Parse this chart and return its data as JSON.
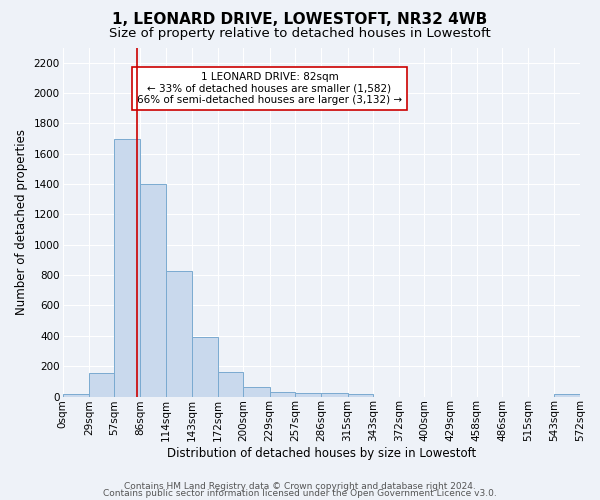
{
  "title": "1, LEONARD DRIVE, LOWESTOFT, NR32 4WB",
  "subtitle": "Size of property relative to detached houses in Lowestoft",
  "xlabel": "Distribution of detached houses by size in Lowestoft",
  "ylabel": "Number of detached properties",
  "bar_values": [
    20,
    155,
    1700,
    1400,
    830,
    390,
    165,
    65,
    30,
    25,
    25,
    15,
    0,
    0,
    0,
    0,
    0,
    0,
    0,
    20
  ],
  "bin_edges": [
    0,
    29,
    57,
    86,
    114,
    143,
    172,
    200,
    229,
    257,
    286,
    315,
    343,
    372,
    400,
    429,
    458,
    486,
    515,
    543,
    572
  ],
  "tick_labels": [
    "0sqm",
    "29sqm",
    "57sqm",
    "86sqm",
    "114sqm",
    "143sqm",
    "172sqm",
    "200sqm",
    "229sqm",
    "257sqm",
    "286sqm",
    "315sqm",
    "343sqm",
    "372sqm",
    "400sqm",
    "429sqm",
    "458sqm",
    "486sqm",
    "515sqm",
    "543sqm",
    "572sqm"
  ],
  "bar_color": "#c9d9ed",
  "bar_edge_color": "#7aaad0",
  "vline_x": 82,
  "vline_color": "#cc0000",
  "ylim": [
    0,
    2300
  ],
  "yticks": [
    0,
    200,
    400,
    600,
    800,
    1000,
    1200,
    1400,
    1600,
    1800,
    2000,
    2200
  ],
  "annotation_title": "1 LEONARD DRIVE: 82sqm",
  "annotation_line1": "← 33% of detached houses are smaller (1,582)",
  "annotation_line2": "66% of semi-detached houses are larger (3,132) →",
  "footer_line1": "Contains HM Land Registry data © Crown copyright and database right 2024.",
  "footer_line2": "Contains public sector information licensed under the Open Government Licence v3.0.",
  "background_color": "#eef2f8",
  "grid_color": "#ffffff",
  "title_fontsize": 11,
  "subtitle_fontsize": 9.5,
  "axis_label_fontsize": 8.5,
  "tick_fontsize": 7.5,
  "footer_fontsize": 6.5
}
